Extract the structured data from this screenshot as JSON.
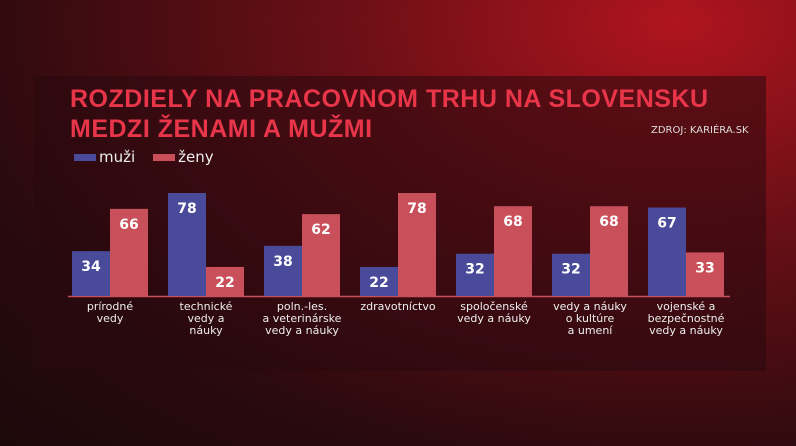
{
  "title_line1": "ROZDIELY NA PRACOVNOM TRHU NA SLOVENSKU",
  "title_line2": "MEDZI ŽENAMI A MUŽMI",
  "source": "ZDROJ: KARIÉRA.SK",
  "chart_data": {
    "type": "bar",
    "title": "ROZDIELY NA PRACOVNOM TRHU NA SLOVENSKU MEDZI ŽENAMI A MUŽMI",
    "categories": [
      "prírodné\nvedy",
      "technické\nvedy a\nnáuky",
      "poln.-les.\na veterinárske\nvedy a náuky",
      "zdravotníctvo",
      "spoločenské\nvedy a náuky",
      "vedy a náuky\no kultúre\na umení",
      "vojenské a\nbezpečnostné\nvedy a náuky"
    ],
    "series": [
      {
        "name": "muži",
        "color": "#4a4a9a",
        "values": [
          34,
          78,
          38,
          22,
          32,
          32,
          67
        ]
      },
      {
        "name": "ženy",
        "color": "#c9505a",
        "values": [
          66,
          22,
          62,
          78,
          68,
          68,
          33
        ]
      }
    ],
    "ylim": [
      0,
      78
    ],
    "grid": false,
    "legend": "top-left"
  }
}
